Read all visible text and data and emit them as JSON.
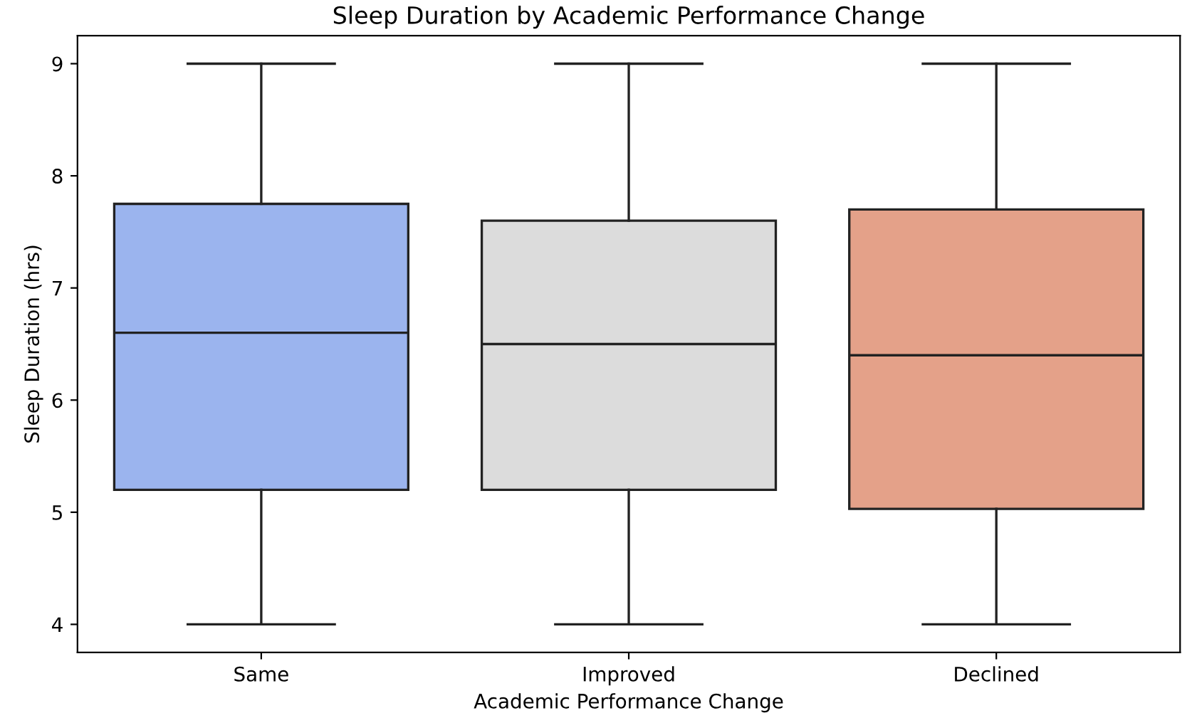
{
  "chart_data": {
    "type": "box",
    "title": "Sleep Duration by Academic Performance Change",
    "xlabel": "Academic Performance Change",
    "ylabel": "Sleep Duration (hrs)",
    "categories": [
      "Same",
      "Improved",
      "Declined"
    ],
    "colors": [
      "#9bb4ee",
      "#dcdcdc",
      "#e4a189"
    ],
    "boxes": [
      {
        "low": 4,
        "q1": 5.2,
        "median": 6.6,
        "q3": 7.75,
        "high": 9
      },
      {
        "low": 4,
        "q1": 5.2,
        "median": 6.5,
        "q3": 7.6,
        "high": 9
      },
      {
        "low": 4,
        "q1": 5.03,
        "median": 6.4,
        "q3": 7.7,
        "high": 9
      }
    ],
    "ylim": [
      3.75,
      9.25
    ],
    "yticks": [
      4,
      5,
      6,
      7,
      8,
      9
    ],
    "grid": false
  }
}
